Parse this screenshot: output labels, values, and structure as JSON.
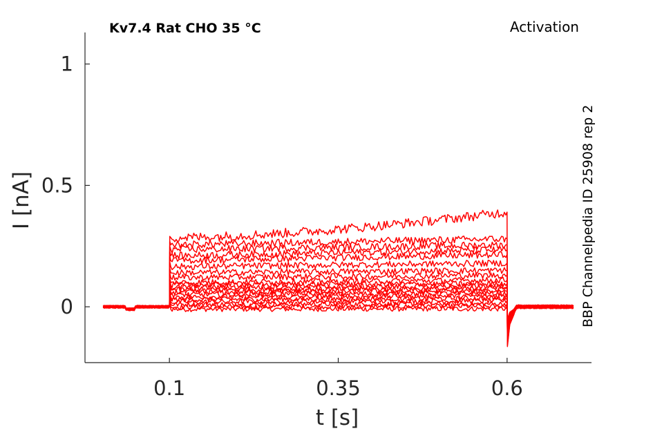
{
  "chart_data": {
    "type": "line",
    "title": "Kv7.4  Rat  CHO  35 °C",
    "subtitle": "Activation",
    "annotation": "BBP Channelpedia ID 25908 rep 2",
    "xlabel": "t [s]",
    "ylabel": "I [nA]",
    "xlim": [
      -0.025,
      0.725
    ],
    "ylim": [
      -0.23,
      1.13
    ],
    "xticks": [
      0.1,
      0.35,
      0.6
    ],
    "xtick_labels": [
      "0.1",
      "0.35",
      "0.6"
    ],
    "yticks": [
      0,
      0.5,
      1
    ],
    "ytick_labels": [
      "0",
      "0.5",
      "1"
    ],
    "grid": false,
    "line_color": "#ff0000",
    "pulse": {
      "start": 0.1,
      "end": 0.6,
      "trace_start": 0.002,
      "trace_end": 0.7
    },
    "series": [
      {
        "values": [
          -0.01,
          -0.008
        ]
      },
      {
        "values": [
          0.0,
          0.002
        ]
      },
      {
        "values": [
          0.01,
          0.012
        ]
      },
      {
        "values": [
          0.02,
          0.025
        ]
      },
      {
        "values": [
          0.03,
          0.035
        ]
      },
      {
        "values": [
          0.04,
          0.045
        ]
      },
      {
        "values": [
          0.05,
          0.055
        ]
      },
      {
        "values": [
          0.06,
          0.065
        ]
      },
      {
        "values": [
          0.07,
          0.075
        ]
      },
      {
        "values": [
          0.08,
          0.085
        ]
      },
      {
        "values": [
          0.09,
          0.095
        ]
      },
      {
        "values": [
          0.1,
          0.11
        ]
      },
      {
        "values": [
          0.12,
          0.13
        ]
      },
      {
        "values": [
          0.14,
          0.15
        ]
      },
      {
        "values": [
          0.165,
          0.18
        ]
      },
      {
        "values": [
          0.19,
          0.215
        ]
      },
      {
        "values": [
          0.21,
          0.235
        ]
      },
      {
        "values": [
          0.235,
          0.255
        ]
      },
      {
        "values": [
          0.255,
          0.28
        ]
      },
      {
        "values": [
          0.285,
          0.39
        ]
      }
    ]
  }
}
